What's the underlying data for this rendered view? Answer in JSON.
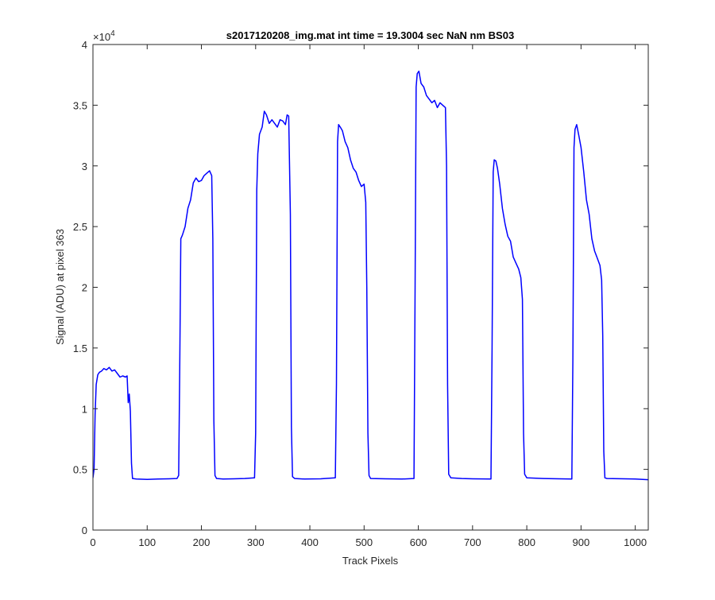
{
  "chart_data": {
    "type": "line",
    "title": "s2017120208_img.mat int time = 19.3004 sec  NaN nm BS03",
    "xlabel": "Track Pixels",
    "ylabel": "Signal (ADU) at pixel 363",
    "xlim": [
      0,
      1024
    ],
    "ylim": [
      0,
      40000
    ],
    "x_ticks": [
      0,
      100,
      200,
      300,
      400,
      500,
      600,
      700,
      800,
      900,
      1000
    ],
    "x_tick_labels": [
      "0",
      "100",
      "200",
      "300",
      "400",
      "500",
      "600",
      "700",
      "800",
      "900",
      "1000"
    ],
    "y_ticks": [
      0,
      5000,
      10000,
      15000,
      20000,
      25000,
      30000,
      35000,
      40000
    ],
    "y_tick_labels": [
      "0",
      "0.5",
      "1",
      "1.5",
      "2",
      "2.5",
      "3",
      "3.5",
      "4"
    ],
    "y_exponent_base": "×10",
    "y_exponent_power": "4",
    "grid": false,
    "series": [
      {
        "color": "#0000ff",
        "points": [
          [
            0,
            4300
          ],
          [
            2,
            5000
          ],
          [
            4,
            9500
          ],
          [
            6,
            12000
          ],
          [
            9,
            12800
          ],
          [
            12,
            13000
          ],
          [
            16,
            13100
          ],
          [
            20,
            13300
          ],
          [
            25,
            13200
          ],
          [
            30,
            13400
          ],
          [
            35,
            13100
          ],
          [
            40,
            13200
          ],
          [
            45,
            12900
          ],
          [
            50,
            12600
          ],
          [
            55,
            12700
          ],
          [
            60,
            12600
          ],
          [
            63,
            12700
          ],
          [
            65,
            10500
          ],
          [
            67,
            11200
          ],
          [
            69,
            9800
          ],
          [
            71,
            5500
          ],
          [
            73,
            4250
          ],
          [
            80,
            4200
          ],
          [
            100,
            4180
          ],
          [
            120,
            4200
          ],
          [
            140,
            4220
          ],
          [
            155,
            4250
          ],
          [
            158,
            4500
          ],
          [
            160,
            13000
          ],
          [
            162,
            24000
          ],
          [
            165,
            24300
          ],
          [
            170,
            25000
          ],
          [
            175,
            26500
          ],
          [
            180,
            27200
          ],
          [
            185,
            28600
          ],
          [
            190,
            29000
          ],
          [
            195,
            28700
          ],
          [
            200,
            28800
          ],
          [
            205,
            29200
          ],
          [
            210,
            29400
          ],
          [
            215,
            29600
          ],
          [
            219,
            29200
          ],
          [
            221,
            24000
          ],
          [
            223,
            9000
          ],
          [
            225,
            4500
          ],
          [
            228,
            4250
          ],
          [
            240,
            4200
          ],
          [
            260,
            4220
          ],
          [
            280,
            4250
          ],
          [
            298,
            4300
          ],
          [
            300,
            8000
          ],
          [
            302,
            28000
          ],
          [
            304,
            31000
          ],
          [
            307,
            32600
          ],
          [
            312,
            33200
          ],
          [
            316,
            34500
          ],
          [
            320,
            34200
          ],
          [
            325,
            33500
          ],
          [
            330,
            33800
          ],
          [
            335,
            33500
          ],
          [
            340,
            33200
          ],
          [
            345,
            33800
          ],
          [
            350,
            33700
          ],
          [
            355,
            33400
          ],
          [
            358,
            34200
          ],
          [
            361,
            34100
          ],
          [
            364,
            26000
          ],
          [
            366,
            8500
          ],
          [
            368,
            4400
          ],
          [
            372,
            4250
          ],
          [
            390,
            4200
          ],
          [
            420,
            4220
          ],
          [
            447,
            4300
          ],
          [
            449,
            12000
          ],
          [
            451,
            32000
          ],
          [
            453,
            33400
          ],
          [
            456,
            33200
          ],
          [
            460,
            32900
          ],
          [
            465,
            32000
          ],
          [
            470,
            31500
          ],
          [
            475,
            30500
          ],
          [
            480,
            29800
          ],
          [
            485,
            29500
          ],
          [
            490,
            28800
          ],
          [
            495,
            28300
          ],
          [
            500,
            28500
          ],
          [
            503,
            27000
          ],
          [
            505,
            20000
          ],
          [
            507,
            8000
          ],
          [
            509,
            4500
          ],
          [
            512,
            4250
          ],
          [
            540,
            4220
          ],
          [
            570,
            4200
          ],
          [
            592,
            4250
          ],
          [
            594,
            20000
          ],
          [
            596,
            36500
          ],
          [
            598,
            37600
          ],
          [
            601,
            37800
          ],
          [
            605,
            36800
          ],
          [
            610,
            36500
          ],
          [
            615,
            35800
          ],
          [
            620,
            35500
          ],
          [
            625,
            35200
          ],
          [
            630,
            35400
          ],
          [
            635,
            34800
          ],
          [
            640,
            35200
          ],
          [
            645,
            35000
          ],
          [
            650,
            34800
          ],
          [
            652,
            30000
          ],
          [
            654,
            12000
          ],
          [
            656,
            4600
          ],
          [
            660,
            4300
          ],
          [
            680,
            4250
          ],
          [
            700,
            4220
          ],
          [
            734,
            4200
          ],
          [
            736,
            15000
          ],
          [
            738,
            29500
          ],
          [
            740,
            30500
          ],
          [
            743,
            30400
          ],
          [
            746,
            29800
          ],
          [
            750,
            28500
          ],
          [
            755,
            26500
          ],
          [
            760,
            25200
          ],
          [
            765,
            24200
          ],
          [
            770,
            23800
          ],
          [
            775,
            22500
          ],
          [
            780,
            22000
          ],
          [
            785,
            21500
          ],
          [
            789,
            20800
          ],
          [
            792,
            19000
          ],
          [
            794,
            8000
          ],
          [
            796,
            4600
          ],
          [
            800,
            4300
          ],
          [
            830,
            4250
          ],
          [
            860,
            4220
          ],
          [
            883,
            4200
          ],
          [
            885,
            14000
          ],
          [
            887,
            31500
          ],
          [
            889,
            33000
          ],
          [
            892,
            33400
          ],
          [
            896,
            32500
          ],
          [
            900,
            31500
          ],
          [
            905,
            29500
          ],
          [
            910,
            27200
          ],
          [
            915,
            26000
          ],
          [
            920,
            24000
          ],
          [
            925,
            23000
          ],
          [
            930,
            22400
          ],
          [
            935,
            21800
          ],
          [
            938,
            20600
          ],
          [
            940,
            16000
          ],
          [
            942,
            6500
          ],
          [
            944,
            4300
          ],
          [
            948,
            4250
          ],
          [
            980,
            4220
          ],
          [
            1000,
            4200
          ],
          [
            1024,
            4150
          ]
        ]
      }
    ]
  }
}
